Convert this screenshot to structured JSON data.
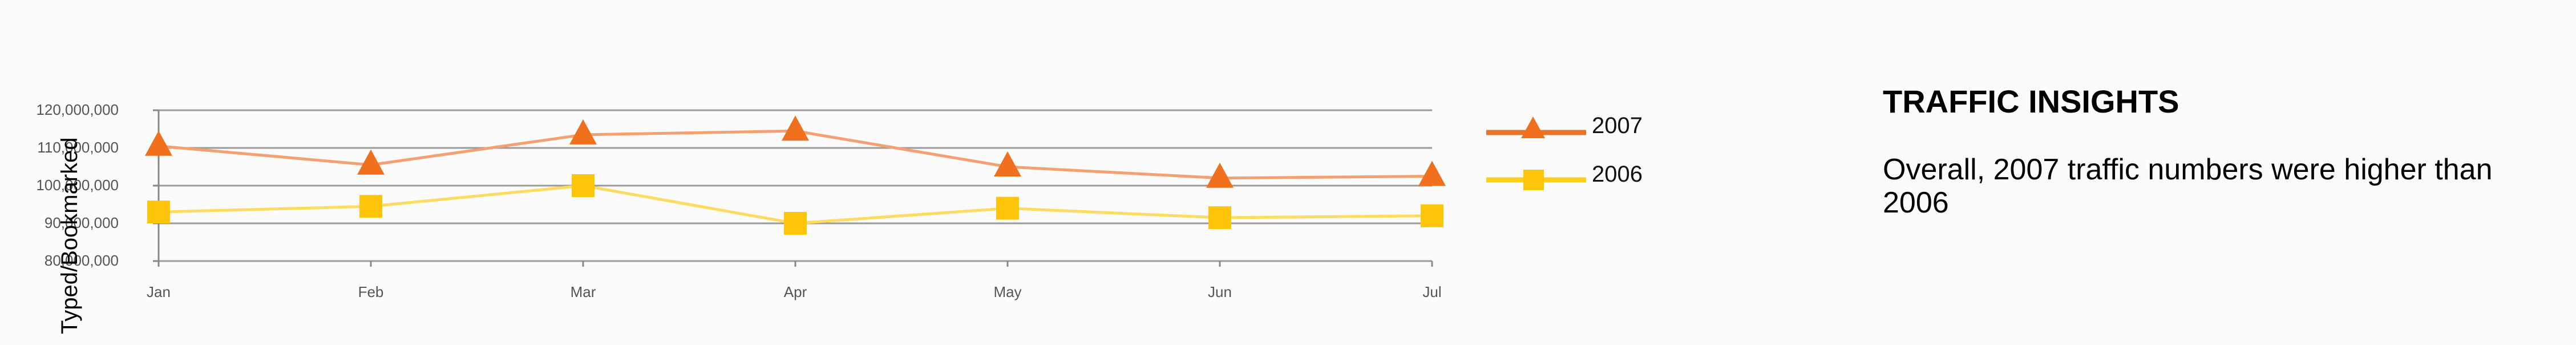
{
  "chart_data": {
    "type": "line",
    "title": "",
    "xlabel": "",
    "ylabel": "Typed/Bookmarked",
    "categories": [
      "Jan",
      "Feb",
      "Mar",
      "Apr",
      "May",
      "Jun",
      "Jul"
    ],
    "ylim": [
      80000000,
      120000000
    ],
    "yticks": [
      "80,000,000",
      "90,000,000",
      "100,000,000",
      "110,000,000",
      "120,000,000"
    ],
    "grid": true,
    "legend_position": "right",
    "series": [
      {
        "name": "2007",
        "marker": "triangle",
        "color": "#f0701e",
        "line_color": "#f5a070",
        "values": [
          110500000,
          105500000,
          113500000,
          114500000,
          105000000,
          102000000,
          102500000
        ]
      },
      {
        "name": "2006",
        "marker": "square",
        "color": "#ffc50a",
        "line_color": "#ffdc60",
        "values": [
          93000000,
          94500000,
          100000000,
          90000000,
          94000000,
          91500000,
          92000000
        ]
      }
    ]
  },
  "insights": {
    "title": "TRAFFIC INSIGHTS",
    "body": "Overall, 2007 traffic numbers were higher than 2006"
  }
}
